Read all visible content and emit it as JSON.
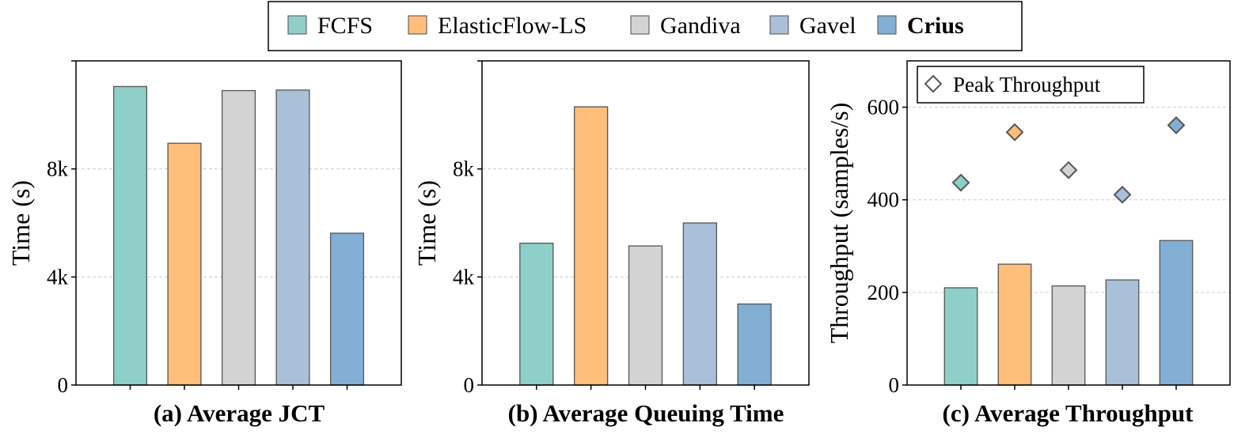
{
  "legend": {
    "items": [
      {
        "label": "FCFS",
        "color": "#8ecfc9",
        "bold": false
      },
      {
        "label": "ElasticFlow-LS",
        "color": "#ffbe7a",
        "bold": false
      },
      {
        "label": "Gandiva",
        "color": "#d3d3d3",
        "bold": false
      },
      {
        "label": "Gavel",
        "color": "#aabfd8",
        "bold": false
      },
      {
        "label": "Crius",
        "color": "#82afd3",
        "bold": true
      }
    ]
  },
  "chart_data": [
    {
      "type": "bar",
      "title": "(a) Average JCT",
      "ylabel": "Time (s)",
      "categories": [
        "FCFS",
        "ElasticFlow-LS",
        "Gandiva",
        "Gavel",
        "Crius"
      ],
      "values": [
        11050,
        8950,
        10900,
        10920,
        5620
      ],
      "ylim": [
        0,
        12000
      ],
      "yticks": [
        0,
        4000,
        8000,
        12000
      ],
      "ytick_labels": [
        "0",
        "4k",
        "8k",
        ""
      ],
      "grid": true
    },
    {
      "type": "bar",
      "title": "(b) Average Queuing Time",
      "ylabel": "Time (s)",
      "categories": [
        "FCFS",
        "ElasticFlow-LS",
        "Gandiva",
        "Gavel",
        "Crius"
      ],
      "values": [
        5250,
        10300,
        5150,
        6000,
        3000
      ],
      "ylim": [
        0,
        12000
      ],
      "yticks": [
        0,
        4000,
        8000,
        12000
      ],
      "ytick_labels": [
        "0",
        "4k",
        "8k",
        ""
      ],
      "grid": true
    },
    {
      "type": "bar",
      "title": "(c) Average Throughput",
      "ylabel": "Throughput (samples/s)",
      "categories": [
        "FCFS",
        "ElasticFlow-LS",
        "Gandiva",
        "Gavel",
        "Crius"
      ],
      "values": [
        210,
        261,
        214,
        227,
        312
      ],
      "series": [
        {
          "name": "Peak Throughput",
          "marker": "diamond",
          "values": [
            437,
            546,
            464,
            411,
            561
          ]
        }
      ],
      "ylim": [
        0,
        700
      ],
      "yticks": [
        0,
        200,
        400,
        600
      ],
      "ytick_labels": [
        "0",
        "200",
        "400",
        "600"
      ],
      "legend": "top-left",
      "grid": true
    }
  ]
}
